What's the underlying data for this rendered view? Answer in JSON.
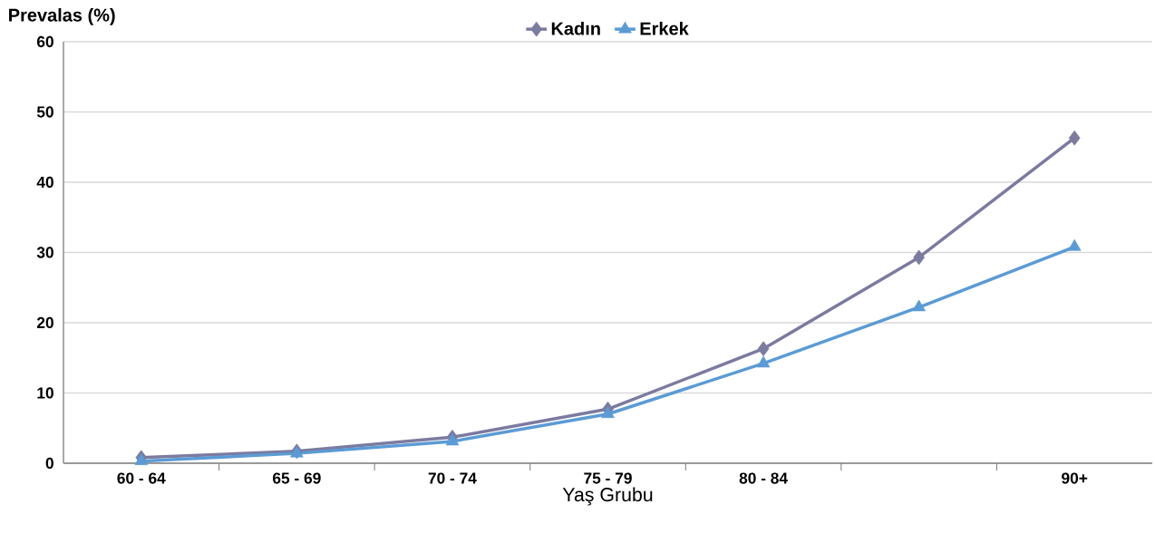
{
  "chart_data": {
    "type": "line",
    "ylabel": "Prevalas (%)",
    "xlabel": "Yaş Grubu",
    "categories": [
      "60 - 64",
      "65 - 69",
      "70 - 74",
      "75 - 79",
      "80 - 84",
      null,
      "90+"
    ],
    "series": [
      {
        "name": "Kadın",
        "color": "#7b7ba0",
        "marker": "diamond",
        "values": [
          0.8,
          1.7,
          3.7,
          7.7,
          16.3,
          29.3,
          46.3
        ]
      },
      {
        "name": "Erkek",
        "color": "#5b9bd5",
        "marker": "triangle",
        "values": [
          0.3,
          1.4,
          3.1,
          7.0,
          14.2,
          22.2,
          30.8
        ]
      }
    ],
    "ylim": [
      0,
      60
    ],
    "yticks": [
      0,
      10,
      20,
      30,
      40,
      50,
      60
    ],
    "grid": "y",
    "legend": "top",
    "line_style": "solid"
  }
}
